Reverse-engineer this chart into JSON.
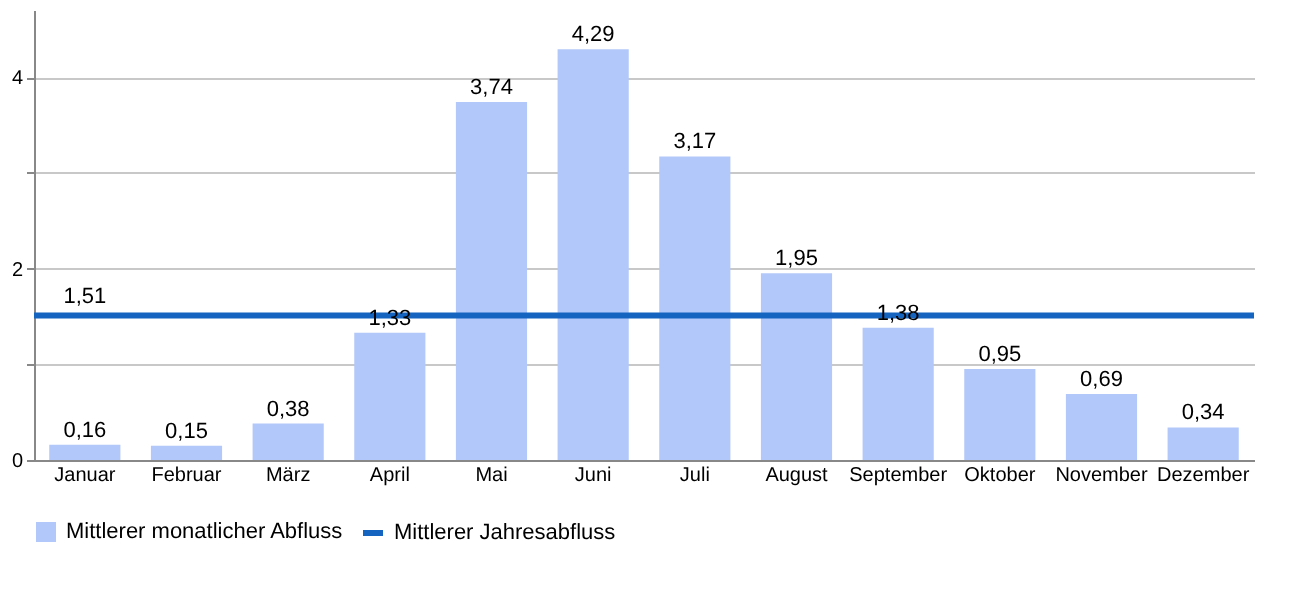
{
  "chart_data": {
    "type": "bar",
    "categories": [
      "Januar",
      "Februar",
      "März",
      "April",
      "Mai",
      "Juni",
      "Juli",
      "August",
      "September",
      "Oktober",
      "November",
      "Dezember"
    ],
    "series": [
      {
        "name": "Mittlerer monatlicher Abfluss",
        "color": "#b3c8fa",
        "values": [
          0.16,
          0.15,
          0.38,
          1.33,
          3.74,
          4.29,
          3.17,
          1.95,
          1.38,
          0.95,
          0.69,
          0.34
        ],
        "value_labels": [
          "0,16",
          "0,15",
          "0,38",
          "1,33",
          "3,74",
          "4,29",
          "3,17",
          "1,95",
          "1,38",
          "0,95",
          "0,69",
          "0,34"
        ]
      }
    ],
    "ref_lines": [
      {
        "axis": "y",
        "value": 1.51,
        "label": "Mittlerer Jahresabfluss",
        "color": "#1565c0"
      }
    ],
    "annotations": [
      {
        "text": "1,51",
        "x": "Januar",
        "y": 1.51
      }
    ],
    "ylim": [
      0,
      4.7
    ],
    "yticks": [
      0,
      {
        "value": 1,
        "label": null
      },
      2,
      {
        "value": 3,
        "label": null
      },
      4
    ],
    "grid": "y",
    "legend": "bottom"
  }
}
